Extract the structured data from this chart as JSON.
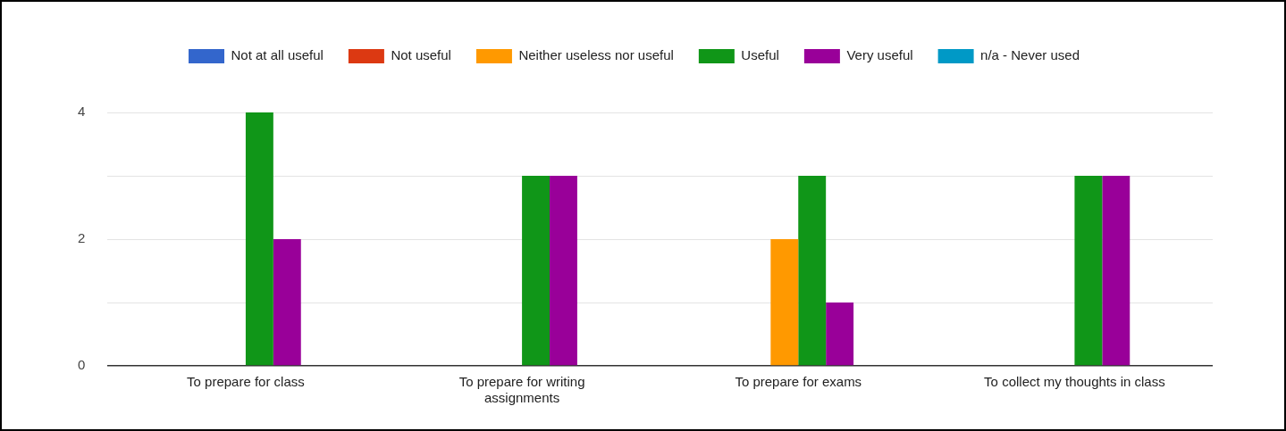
{
  "chart_data": {
    "type": "bar",
    "categories": [
      "To prepare for class",
      "To prepare for writing assignments",
      "To prepare for exams",
      "To collect my thoughts in class"
    ],
    "series": [
      {
        "name": "Not at all useful",
        "color": "#3366cc",
        "values": [
          0,
          0,
          0,
          0
        ]
      },
      {
        "name": "Not useful",
        "color": "#dc3912",
        "values": [
          0,
          0,
          0,
          0
        ]
      },
      {
        "name": "Neither useless nor useful",
        "color": "#ff9900",
        "values": [
          0,
          0,
          2,
          0
        ]
      },
      {
        "name": "Useful",
        "color": "#109618",
        "values": [
          4,
          3,
          3,
          3
        ]
      },
      {
        "name": "Very useful",
        "color": "#990099",
        "values": [
          2,
          3,
          1,
          3
        ]
      },
      {
        "name": "n/a - Never used",
        "color": "#0099c6",
        "values": [
          0,
          0,
          0,
          0
        ]
      }
    ],
    "ylim": [
      0,
      4
    ],
    "yticks": [
      0,
      {
        "value": 1,
        "label": null
      },
      2,
      {
        "value": 3,
        "label": null
      },
      4
    ],
    "grid": "y",
    "legend": "top"
  }
}
